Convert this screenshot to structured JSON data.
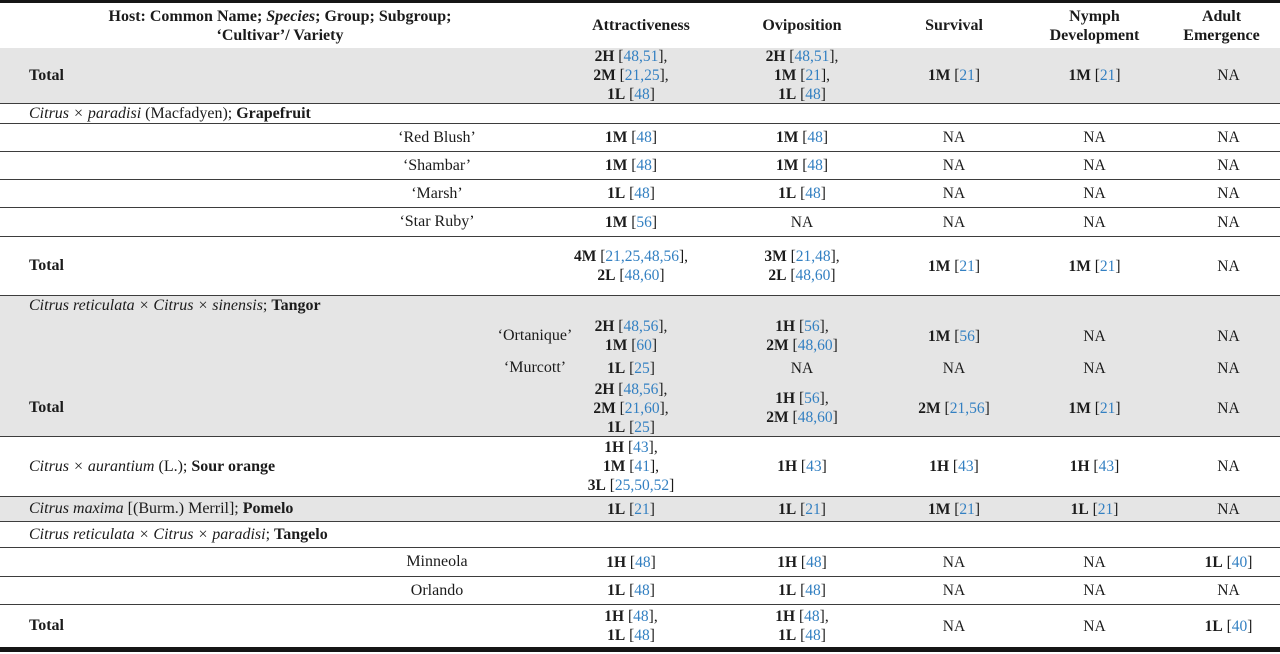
{
  "header": {
    "host": {
      "line1_pre": "Host: Common Name; ",
      "line1_italic": "Species",
      "line1_post": "; Group; Subgroup;",
      "line2": "‘Cultivar’/ Variety"
    },
    "columns": [
      "Attractiveness",
      "Oviposition",
      "Survival",
      "Nymph\nDevelopment",
      "Adult\nEmergence"
    ]
  },
  "colors": {
    "citation_link": "#3380c2",
    "row_shade": "#e5e5e5"
  },
  "na_text": "NA",
  "rows": [
    {
      "kind": "total-row",
      "host": {
        "type": "total",
        "label": "Total"
      },
      "cells": [
        [
          {
            "v": "2H",
            "r": "48,51",
            "t": ","
          },
          {
            "v": "2M",
            "r": "21,25",
            "t": ","
          },
          {
            "v": "1L",
            "r": "48"
          }
        ],
        [
          {
            "v": "2H",
            "r": "48,51",
            "t": ","
          },
          {
            "v": "1M",
            "r": "21",
            "t": ","
          },
          {
            "v": "1L",
            "r": "48"
          }
        ],
        [
          {
            "v": "1M",
            "r": "21"
          }
        ],
        [
          {
            "v": "1M",
            "r": "21"
          }
        ],
        [
          "NA"
        ]
      ]
    },
    {
      "kind": "section-row",
      "host": {
        "type": "species",
        "segments": [
          {
            "t": "Citrus × paradisi",
            "s": "i"
          },
          {
            "t": " (Macfadyen); ",
            "s": "n"
          },
          {
            "t": "Grapefruit",
            "s": "b"
          }
        ]
      },
      "cells": [
        [],
        [],
        [],
        [],
        []
      ]
    },
    {
      "kind": "cultivar-row",
      "host": {
        "type": "cultivar",
        "label": "‘Red Blush’",
        "indent": "a"
      },
      "cells": [
        [
          {
            "v": "1M",
            "r": "48"
          }
        ],
        [
          {
            "v": "1M",
            "r": "48"
          }
        ],
        [
          "NA"
        ],
        [
          "NA"
        ],
        [
          "NA"
        ]
      ]
    },
    {
      "kind": "cultivar-row",
      "host": {
        "type": "cultivar",
        "label": "‘Shambar’",
        "indent": "a"
      },
      "cells": [
        [
          {
            "v": "1M",
            "r": "48"
          }
        ],
        [
          {
            "v": "1M",
            "r": "48"
          }
        ],
        [
          "NA"
        ],
        [
          "NA"
        ],
        [
          "NA"
        ]
      ]
    },
    {
      "kind": "cultivar-row",
      "host": {
        "type": "cultivar",
        "label": "‘Marsh’",
        "indent": "a"
      },
      "cells": [
        [
          {
            "v": "1L",
            "r": "48"
          }
        ],
        [
          {
            "v": "1L",
            "r": "48"
          }
        ],
        [
          "NA"
        ],
        [
          "NA"
        ],
        [
          "NA"
        ]
      ]
    },
    {
      "kind": "cultivar-row",
      "host": {
        "type": "cultivar",
        "label": "‘Star Ruby’",
        "indent": "a"
      },
      "cells": [
        [
          {
            "v": "1M",
            "r": "56"
          }
        ],
        [
          "NA"
        ],
        [
          "NA"
        ],
        [
          "NA"
        ],
        [
          "NA"
        ]
      ]
    },
    {
      "kind": "total-row",
      "host": {
        "type": "total",
        "label": "Total"
      },
      "cells": [
        [
          {
            "v": "4M",
            "r": "21,25,48,56",
            "t": ","
          },
          {
            "v": "2L",
            "r": "48,60"
          }
        ],
        [
          {
            "v": "3M",
            "r": "21,48",
            "t": ","
          },
          {
            "v": "2L",
            "r": "48,60"
          }
        ],
        [
          {
            "v": "1M",
            "r": "21"
          }
        ],
        [
          {
            "v": "1M",
            "r": "21"
          }
        ],
        [
          "NA"
        ]
      ]
    },
    {
      "kind": "section-row",
      "host": {
        "type": "species",
        "segments": [
          {
            "t": "Citrus reticulata × Citrus × sinensis",
            "s": "i"
          },
          {
            "t": "; ",
            "s": "n"
          },
          {
            "t": "Tangor",
            "s": "b"
          }
        ]
      },
      "cells": [
        [],
        [],
        [],
        [],
        []
      ]
    },
    {
      "kind": "cultivar-row",
      "host": {
        "type": "cultivar",
        "label": "‘Ortanique’",
        "indent": "b"
      },
      "cells": [
        [
          {
            "v": "2H",
            "r": "48,56",
            "t": ","
          },
          {
            "v": "1M",
            "r": "60"
          }
        ],
        [
          {
            "v": "1H",
            "r": "56",
            "t": ","
          },
          {
            "v": "2M",
            "r": "48,60"
          }
        ],
        [
          {
            "v": "1M",
            "r": "56"
          }
        ],
        [
          "NA"
        ],
        [
          "NA"
        ]
      ]
    },
    {
      "kind": "cultivar-row",
      "host": {
        "type": "cultivar",
        "label": "‘Murcott’",
        "indent": "b"
      },
      "cells": [
        [
          {
            "v": "1L",
            "r": "25"
          }
        ],
        [
          "NA"
        ],
        [
          "NA"
        ],
        [
          "NA"
        ],
        [
          "NA"
        ]
      ]
    },
    {
      "kind": "total-row",
      "host": {
        "type": "total",
        "label": "Total"
      },
      "cells": [
        [
          {
            "v": "2H",
            "r": "48,56",
            "t": ","
          },
          {
            "v": "2M",
            "r": "21,60",
            "t": ","
          },
          {
            "v": "1L",
            "r": "25"
          }
        ],
        [
          {
            "v": "1H",
            "r": "56",
            "t": ","
          },
          {
            "v": "2M",
            "r": "48,60"
          }
        ],
        [
          {
            "v": "2M",
            "r": "21,56"
          }
        ],
        [
          {
            "v": "1M",
            "r": "21"
          }
        ],
        [
          "NA"
        ]
      ]
    },
    {
      "kind": "section-row",
      "host": {
        "type": "species",
        "segments": [
          {
            "t": "Citrus × aurantium",
            "s": "i"
          },
          {
            "t": " (L.); ",
            "s": "n"
          },
          {
            "t": "Sour orange",
            "s": "b"
          }
        ]
      },
      "cells": [
        [
          {
            "v": "1H",
            "r": "43",
            "t": ","
          },
          {
            "v": "1M",
            "r": "41",
            "t": ","
          },
          {
            "v": "3L",
            "r": "25,50,52"
          }
        ],
        [
          {
            "v": "1H",
            "r": "43"
          }
        ],
        [
          {
            "v": "1H",
            "r": "43"
          }
        ],
        [
          {
            "v": "1H",
            "r": "43"
          }
        ],
        [
          "NA"
        ]
      ]
    },
    {
      "kind": "section-row",
      "host": {
        "type": "species",
        "segments": [
          {
            "t": "Citrus maxima",
            "s": "i"
          },
          {
            "t": " [(Burm.) Merril]; ",
            "s": "n"
          },
          {
            "t": "Pomelo",
            "s": "b"
          }
        ]
      },
      "cells": [
        [
          {
            "v": "1L",
            "r": "21"
          }
        ],
        [
          {
            "v": "1L",
            "r": "21"
          }
        ],
        [
          {
            "v": "1M",
            "r": "21"
          }
        ],
        [
          {
            "v": "1L",
            "r": "21"
          }
        ],
        [
          "NA"
        ]
      ]
    },
    {
      "kind": "section-row",
      "host": {
        "type": "species",
        "segments": [
          {
            "t": "Citrus reticulata × Citrus × paradisi",
            "s": "i"
          },
          {
            "t": "; ",
            "s": "n"
          },
          {
            "t": "Tangelo",
            "s": "b"
          }
        ]
      },
      "cells": [
        [],
        [],
        [],
        [],
        []
      ]
    },
    {
      "kind": "cultivar-row",
      "host": {
        "type": "cultivar",
        "label": "Minneola",
        "indent": "a"
      },
      "cells": [
        [
          {
            "v": "1H",
            "r": "48"
          }
        ],
        [
          {
            "v": "1H",
            "r": "48"
          }
        ],
        [
          "NA"
        ],
        [
          "NA"
        ],
        [
          {
            "v": "1L",
            "r": "40"
          }
        ]
      ]
    },
    {
      "kind": "cultivar-row",
      "host": {
        "type": "cultivar",
        "label": "Orlando",
        "indent": "a"
      },
      "cells": [
        [
          {
            "v": "1L",
            "r": "48"
          }
        ],
        [
          {
            "v": "1L",
            "r": "48"
          }
        ],
        [
          "NA"
        ],
        [
          "NA"
        ],
        [
          "NA"
        ]
      ]
    },
    {
      "kind": "total-row",
      "host": {
        "type": "total",
        "label": "Total"
      },
      "cells": [
        [
          {
            "v": "1H",
            "r": "48",
            "t": ","
          },
          {
            "v": "1L",
            "r": "48"
          }
        ],
        [
          {
            "v": "1H",
            "r": "48",
            "t": ","
          },
          {
            "v": "1L",
            "r": "48"
          }
        ],
        [
          "NA"
        ],
        [
          "NA"
        ],
        [
          {
            "v": "1L",
            "r": "40"
          }
        ]
      ]
    }
  ]
}
